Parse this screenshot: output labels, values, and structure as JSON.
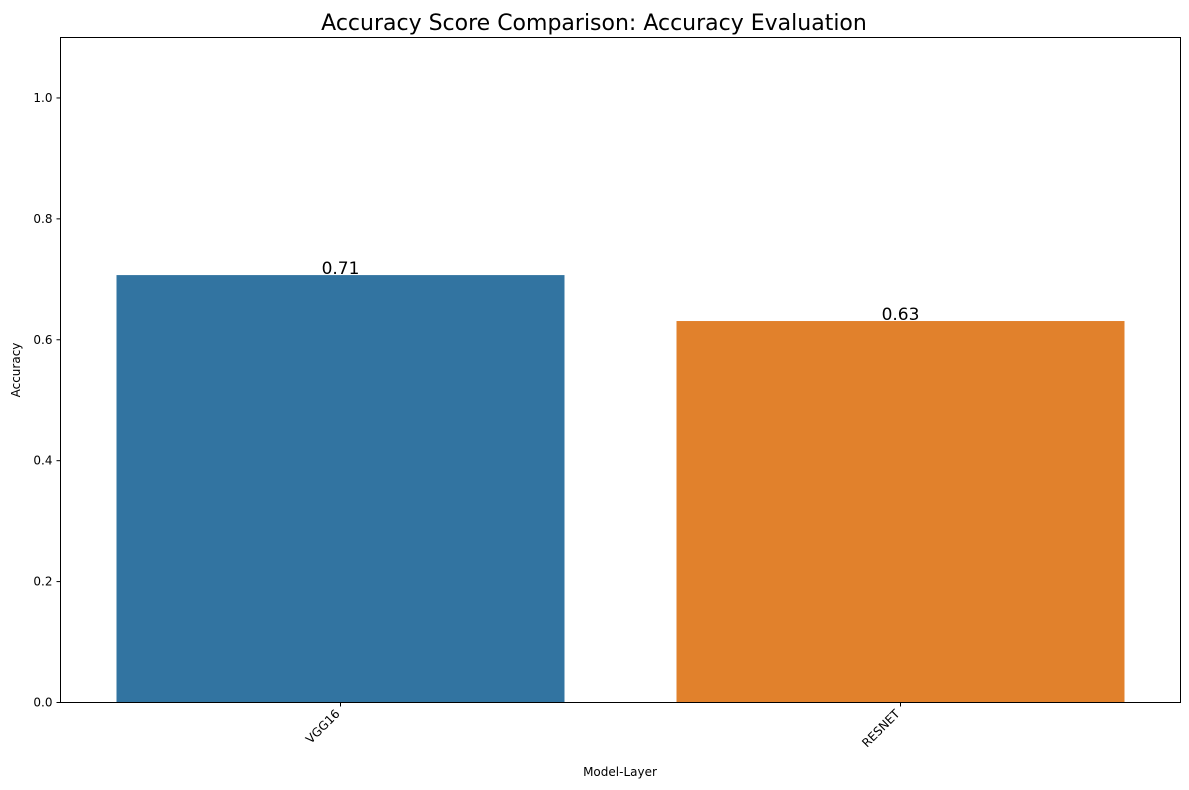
{
  "chart_data": {
    "type": "bar",
    "title": "Accuracy Score Comparison: Accuracy Evaluation",
    "xlabel": "Model-Layer",
    "ylabel": "Accuracy",
    "categories": [
      "VGG16",
      "RESNET"
    ],
    "values": [
      0.707,
      0.631
    ],
    "data_labels": [
      "0.71",
      "0.63"
    ],
    "colors": [
      "#3274a1",
      "#e1812c"
    ],
    "ylim": [
      0,
      1.1
    ],
    "yticks": [
      0.0,
      0.2,
      0.4,
      0.6,
      0.8,
      1.0
    ],
    "ytick_labels": [
      "0.0",
      "0.2",
      "0.4",
      "0.6",
      "0.8",
      "1.0"
    ],
    "xtick_rotation": "45 degrees",
    "grid": false,
    "legend": "none"
  }
}
